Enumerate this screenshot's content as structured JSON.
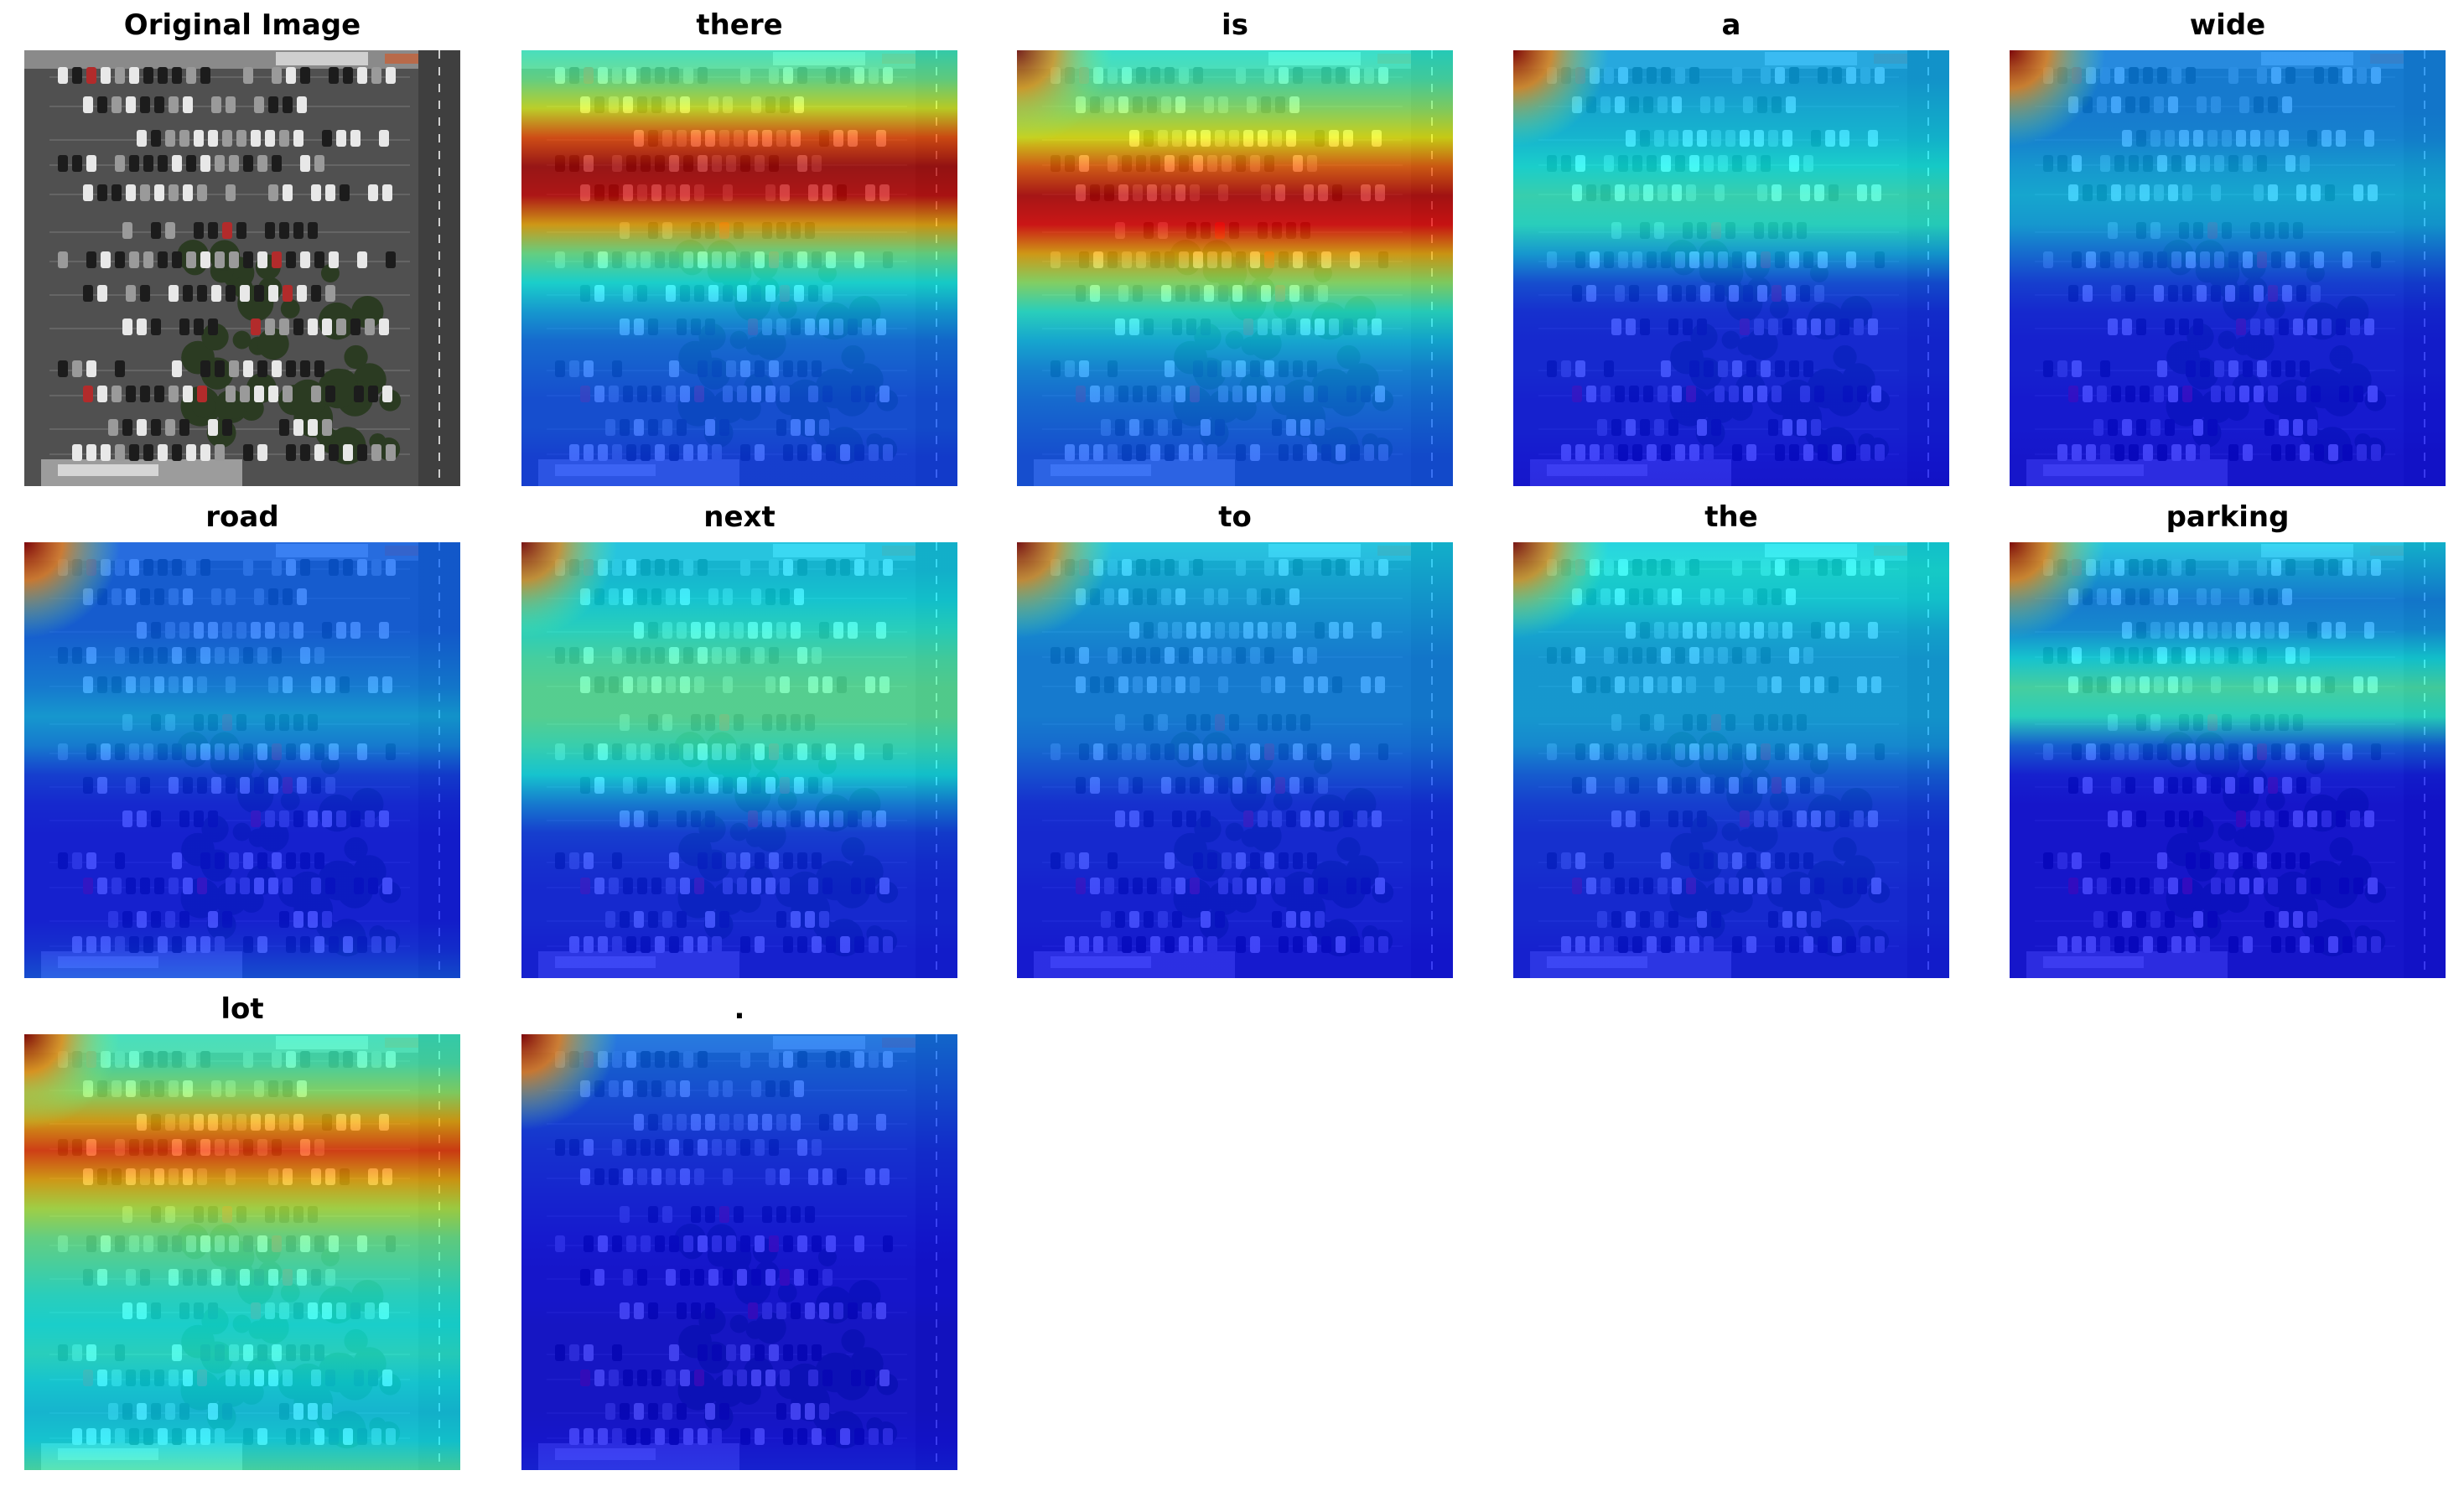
{
  "panels": [
    {
      "title": "Original Image",
      "kind": "original",
      "attention": []
    },
    {
      "title": "there",
      "kind": "heatmap",
      "attention": [
        0.42,
        0.48,
        0.6,
        0.8,
        0.95,
        0.92,
        0.7,
        0.48,
        0.38,
        0.3,
        0.24,
        0.22,
        0.2,
        0.2,
        0.18,
        0.18
      ],
      "corner": 0.0
    },
    {
      "title": "is",
      "kind": "heatmap",
      "attention": [
        0.4,
        0.44,
        0.52,
        0.62,
        0.78,
        0.93,
        0.88,
        0.7,
        0.52,
        0.4,
        0.32,
        0.27,
        0.24,
        0.22,
        0.2,
        0.2
      ],
      "corner": 0.85
    },
    {
      "title": "a",
      "kind": "heatmap",
      "attention": [
        0.3,
        0.3,
        0.32,
        0.34,
        0.38,
        0.42,
        0.4,
        0.3,
        0.2,
        0.16,
        0.15,
        0.15,
        0.14,
        0.14,
        0.13,
        0.12
      ],
      "corner": 0.95
    },
    {
      "title": "wide",
      "kind": "heatmap",
      "attention": [
        0.26,
        0.26,
        0.26,
        0.27,
        0.3,
        0.32,
        0.3,
        0.24,
        0.18,
        0.15,
        0.14,
        0.14,
        0.13,
        0.13,
        0.12,
        0.12
      ],
      "corner": 0.95
    },
    {
      "title": "road",
      "kind": "heatmap",
      "attention": [
        0.22,
        0.22,
        0.22,
        0.22,
        0.24,
        0.26,
        0.3,
        0.26,
        0.18,
        0.15,
        0.14,
        0.14,
        0.14,
        0.14,
        0.16,
        0.2
      ],
      "corner": 0.95
    },
    {
      "title": "next",
      "kind": "heatmap",
      "attention": [
        0.34,
        0.34,
        0.36,
        0.4,
        0.44,
        0.46,
        0.46,
        0.42,
        0.36,
        0.26,
        0.18,
        0.16,
        0.15,
        0.15,
        0.14,
        0.14
      ],
      "corner": 0.9
    },
    {
      "title": "to",
      "kind": "heatmap",
      "attention": [
        0.34,
        0.32,
        0.3,
        0.28,
        0.26,
        0.26,
        0.26,
        0.24,
        0.2,
        0.16,
        0.15,
        0.15,
        0.14,
        0.14,
        0.13,
        0.13
      ],
      "corner": 0.9
    },
    {
      "title": "the",
      "kind": "heatmap",
      "attention": [
        0.36,
        0.38,
        0.36,
        0.32,
        0.3,
        0.3,
        0.3,
        0.28,
        0.22,
        0.18,
        0.16,
        0.16,
        0.15,
        0.15,
        0.14,
        0.14
      ],
      "corner": 0.9
    },
    {
      "title": "parking",
      "kind": "heatmap",
      "attention": [
        0.34,
        0.3,
        0.26,
        0.28,
        0.36,
        0.44,
        0.4,
        0.22,
        0.14,
        0.12,
        0.12,
        0.12,
        0.12,
        0.12,
        0.12,
        0.12
      ],
      "corner": 0.95
    },
    {
      "title": "lot",
      "kind": "heatmap",
      "attention": [
        0.42,
        0.44,
        0.52,
        0.7,
        0.82,
        0.7,
        0.56,
        0.48,
        0.44,
        0.4,
        0.38,
        0.4,
        0.36,
        0.34,
        0.36,
        0.44
      ],
      "corner": 0.95
    },
    {
      "title": ".",
      "kind": "heatmap",
      "attention": [
        0.24,
        0.22,
        0.2,
        0.18,
        0.16,
        0.15,
        0.14,
        0.13,
        0.12,
        0.12,
        0.11,
        0.11,
        0.11,
        0.11,
        0.12,
        0.14
      ],
      "corner": 0.95
    }
  ]
}
